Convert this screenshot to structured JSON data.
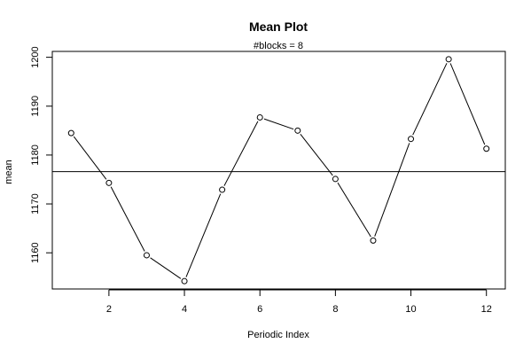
{
  "chart_data": {
    "type": "line",
    "title": "Mean Plot",
    "subtitle": "#blocks =  8",
    "xlabel": "Periodic Index",
    "ylabel": "mean",
    "x": [
      1,
      2,
      3,
      4,
      5,
      6,
      7,
      8,
      9,
      10,
      11,
      12
    ],
    "series": [
      {
        "values": [
          1184.5,
          1174.3,
          1159.5,
          1154.2,
          1172.9,
          1187.7,
          1185.0,
          1175.1,
          1162.5,
          1183.3,
          1199.6,
          1181.3
        ]
      }
    ],
    "reference_line": 1176.6,
    "xlim": [
      0.5,
      12.5
    ],
    "ylim": [
      1152.6,
      1201.2
    ],
    "xticks": [
      2,
      4,
      6,
      8,
      10,
      12
    ],
    "yticks": [
      1160,
      1170,
      1180,
      1190,
      1200
    ],
    "marker": "open-circle",
    "grid": false,
    "legend": "none",
    "colors": {
      "line": "#000000",
      "background": "#ffffff"
    }
  }
}
